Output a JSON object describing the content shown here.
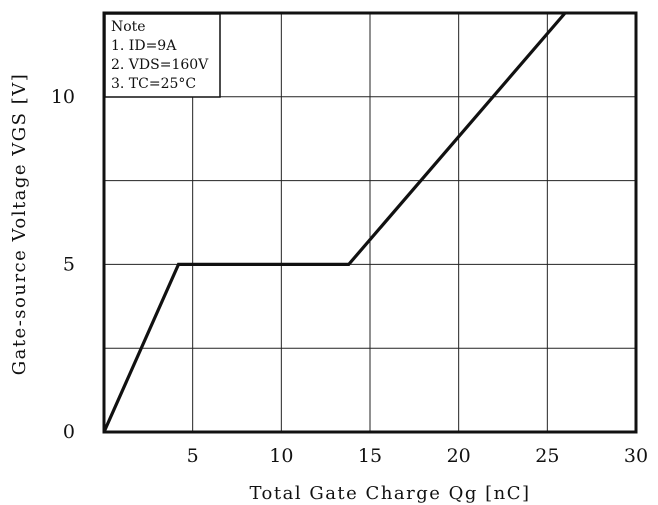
{
  "chart_data": {
    "type": "line",
    "xlabel": "Total Gate Charge Qg [nC]",
    "ylabel": "Gate-source Voltage VGS [V]",
    "xlim": [
      0,
      30
    ],
    "ylim": [
      0,
      12.5
    ],
    "x_ticks": [
      {
        "value": 5,
        "label": "5"
      },
      {
        "value": 10,
        "label": "10"
      },
      {
        "value": 15,
        "label": "15"
      },
      {
        "value": 20,
        "label": "20"
      },
      {
        "value": 25,
        "label": "25"
      },
      {
        "value": 30,
        "label": "30"
      }
    ],
    "y_ticks": [
      {
        "value": 0,
        "label": "0"
      },
      {
        "value": 5,
        "label": "5"
      },
      {
        "value": 10,
        "label": "10"
      }
    ],
    "x_grid": [
      5,
      10,
      15,
      20,
      25
    ],
    "y_grid": [
      2.5,
      5,
      7.5,
      10
    ],
    "grid": true,
    "series": [
      {
        "x": [
          0,
          4.2,
          13.8,
          26
        ],
        "y": [
          0,
          5,
          5,
          12.5
        ]
      }
    ],
    "note": {
      "title": "Note",
      "lines": [
        "1. ID=9A",
        "2. VDS=160V",
        "3. TC=25°C"
      ]
    },
    "line_color": "#111111"
  }
}
